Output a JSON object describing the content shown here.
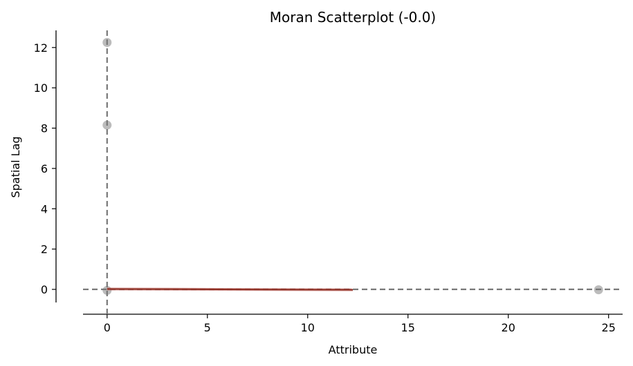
{
  "chart_data": {
    "type": "scatter",
    "title": "Moran Scatterplot (-0.0)",
    "xlabel": "Attribute",
    "ylabel": "Spatial Lag",
    "xlim": [
      -1.2,
      25.7
    ],
    "ylim": [
      -0.65,
      12.85
    ],
    "xticks": [
      0,
      5,
      10,
      15,
      20,
      25
    ],
    "yticks": [
      0,
      2,
      4,
      6,
      8,
      10,
      12
    ],
    "xtick_labels": [
      "0",
      "5",
      "10",
      "15",
      "20",
      "25"
    ],
    "ytick_labels": [
      "0",
      "2",
      "4",
      "6",
      "8",
      "10",
      "12"
    ],
    "grid": false,
    "points": [
      {
        "x": 0,
        "y": 12.25
      },
      {
        "x": 0,
        "y": 8.15
      },
      {
        "x": 0,
        "y": -0.05
      },
      {
        "x": 24.5,
        "y": -0.02
      }
    ],
    "reference_lines": {
      "vertical_x": 0,
      "horizontal_y": 0
    },
    "fit_line": {
      "x": [
        0,
        12.25
      ],
      "y": [
        0.02,
        -0.02
      ]
    },
    "colors": {
      "points": "#b0b0b0",
      "reference_lines": "#777777",
      "fit_line": "#8b2d22"
    }
  }
}
